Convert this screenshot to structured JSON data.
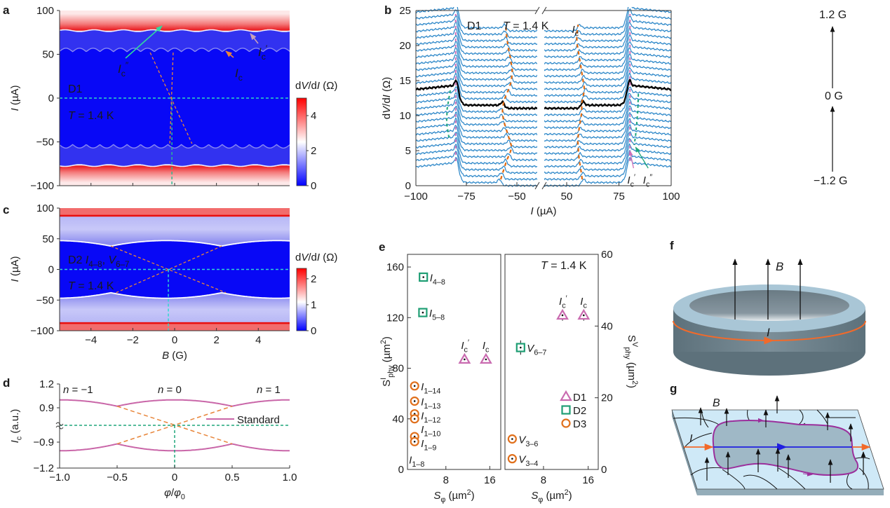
{
  "panel_letters": {
    "a": "a",
    "b": "b",
    "c": "c",
    "d": "d",
    "e": "e",
    "f": "f",
    "g": "g"
  },
  "chart_data": [
    {
      "type": "heatmap",
      "letter": "a",
      "ylabel": [
        [
          "I",
          "i"
        ],
        [
          " (µA)",
          ""
        ]
      ],
      "xlim": [
        -5.5,
        5.5
      ],
      "ylim": [
        -100,
        100
      ],
      "xticks": [
        -4,
        -2,
        0,
        2,
        4
      ],
      "yticks": [
        100,
        50,
        0,
        -50,
        -100
      ],
      "ytick_labels": [
        "100",
        "50",
        "0",
        "−50",
        "−100"
      ],
      "colorbar": {
        "label": [
          [
            "d",
            ""
          ],
          [
            "V",
            "i"
          ],
          [
            "/d",
            ""
          ],
          [
            "I",
            "i"
          ],
          [
            " (Ω)",
            ""
          ]
        ],
        "range": [
          0,
          5
        ],
        "ticks": [
          0,
          2,
          4
        ],
        "tick_labels": [
          "0",
          "2",
          "4"
        ]
      },
      "device": "D1",
      "temperature": [
        [
          "T",
          "i"
        ],
        [
          " = 1.4 K",
          ""
        ]
      ],
      "annotations": {
        "ic": [
          [
            "I",
            "i"
          ],
          [
            "c",
            "sub"
          ]
        ],
        "ic_prime": [
          [
            "I",
            "i"
          ],
          [
            "c",
            "sub"
          ],
          [
            "′",
            "sup"
          ]
        ],
        "ic_dprime": [
          [
            "I",
            "i"
          ],
          [
            "c",
            "sub"
          ],
          [
            "″",
            "sup"
          ]
        ]
      },
      "values": {
        "ic_uA": 53,
        "ic_oscillation_uA": 4,
        "ic_period_G": 0.65,
        "ic_prime_uA": 77,
        "ic_dprime_uA": 80
      },
      "colors": {
        "low": "#0000ff",
        "mid": "#ffffff",
        "high": "#ff0000",
        "ic_arrow": "#e8853a",
        "ic_prime_arrow": "#c9a0b8",
        "ic_dprime_arrow": "#2fd8a0"
      }
    },
    {
      "type": "line",
      "letter": "b",
      "xlabel": [
        [
          "I",
          "i"
        ],
        [
          " (µA)",
          ""
        ]
      ],
      "ylabel": [
        [
          "d",
          ""
        ],
        [
          "V",
          "i"
        ],
        [
          "/d",
          ""
        ],
        [
          "I",
          "i"
        ],
        [
          " (Ω)",
          ""
        ]
      ],
      "ylim": [
        0,
        25
      ],
      "yticks": [
        0,
        5,
        10,
        15,
        20,
        25
      ],
      "ytick_labels": [
        "0",
        "5",
        "10",
        "15",
        "20",
        "25"
      ],
      "xticks_left": [
        -100,
        -75,
        -50
      ],
      "xtick_labels_left": [
        "−100",
        "−75",
        "−50"
      ],
      "xticks_right": [
        50,
        75,
        100
      ],
      "xtick_labels_right": [
        "50",
        "75",
        "100"
      ],
      "device": "D1",
      "temperature": [
        [
          "T",
          "i"
        ],
        [
          " = 1.4 K",
          ""
        ]
      ],
      "field_labels": {
        "top": "1.2 G",
        "middle": "0 G",
        "bottom": "−1.2 G"
      },
      "field_range_G": [
        -1.2,
        1.2
      ],
      "trace_offset_ohm": 0.92,
      "ic_prime_uA": 80,
      "ic_neg_uA": [
        58,
        57,
        56,
        55,
        53.5,
        52.5,
        53.5,
        54.5,
        55.5,
        56.5,
        57,
        57.2,
        56.5,
        55.5,
        54,
        53,
        52.5,
        52.3,
        52.8,
        53.3,
        54,
        54.5,
        55,
        55.3,
        55.5
      ],
      "ic_pos_uA": [
        57.4,
        57,
        56.5,
        56,
        55.7,
        55.5,
        55.3,
        55.6,
        56,
        56.5,
        57,
        57.2,
        57.2,
        58,
        58.5,
        58,
        57.5,
        57,
        56.5,
        56,
        55.5,
        55,
        54.8,
        55,
        55.5
      ],
      "annotations": {
        "ic": [
          [
            "I",
            "i"
          ],
          [
            "c",
            "sub"
          ]
        ],
        "ic_prime": [
          [
            "I",
            "i"
          ],
          [
            "c",
            "sub"
          ],
          [
            "′",
            "sup"
          ]
        ],
        "ic_dprime": [
          [
            "I",
            "i"
          ],
          [
            "c",
            "sub"
          ],
          [
            "″",
            "sup"
          ]
        ]
      },
      "colors": {
        "trace": "#2a86c8",
        "zero_field_trace": "#000000",
        "ic": "#e06a10",
        "ic_prime": "#d070b8",
        "ic_dprime": "#1ea57a"
      }
    },
    {
      "type": "heatmap",
      "letter": "c",
      "xlabel": [
        [
          "B",
          "i"
        ],
        [
          " (G)",
          ""
        ]
      ],
      "ylabel": [
        [
          "I",
          "i"
        ],
        [
          " (µA)",
          ""
        ]
      ],
      "xlim": [
        -5.5,
        5.5
      ],
      "ylim": [
        -100,
        100
      ],
      "xticks": [
        -4,
        -2,
        0,
        2,
        4
      ],
      "xtick_labels": [
        "−4",
        "−2",
        "0",
        "2",
        "4"
      ],
      "yticks": [
        100,
        50,
        0,
        -50,
        -100
      ],
      "ytick_labels": [
        "100",
        "50",
        "0",
        "−50",
        "−100"
      ],
      "colorbar": {
        "label": [
          [
            "d",
            ""
          ],
          [
            "V",
            "i"
          ],
          [
            "/d",
            ""
          ],
          [
            "I",
            "i"
          ],
          [
            " (Ω)",
            ""
          ]
        ],
        "range": [
          0,
          2.4
        ],
        "ticks": [
          0,
          1,
          2
        ],
        "tick_labels": [
          "0",
          "1",
          "2"
        ]
      },
      "device": [
        [
          "D2 ",
          ""
        ],
        [
          "I",
          "i"
        ],
        [
          "4–8",
          "sub"
        ],
        [
          ", ",
          ""
        ],
        [
          "V",
          "i"
        ],
        [
          "6–7",
          "sub"
        ]
      ],
      "temperature": [
        [
          "T",
          "i"
        ],
        [
          " = 1.4 K",
          ""
        ]
      ],
      "values": {
        "ic_max_uA": 47,
        "ic_cusp_uA": 38,
        "period_G": 5.3,
        "center_G": -0.4,
        "normal_state_edge_uA": 86
      },
      "colors": {
        "low": "#0000ff",
        "mid": "#ffffff",
        "high": "#ff0000"
      }
    },
    {
      "type": "line",
      "letter": "d",
      "xlabel": [
        [
          "φ",
          "i"
        ],
        [
          "/",
          ""
        ],
        [
          "φ",
          "i"
        ],
        [
          "0",
          "sub"
        ]
      ],
      "ylabel": [
        [
          "I",
          "i"
        ],
        [
          "c",
          "sub"
        ],
        [
          " (a.u.)",
          ""
        ]
      ],
      "xlim": [
        -1.0,
        1.0
      ],
      "xticks": [
        -1.0,
        -0.5,
        0,
        0.5,
        1.0
      ],
      "xtick_labels": [
        "−1.0",
        "−0.5",
        "0",
        "0.5",
        "1.0"
      ],
      "yticks": [
        1.2,
        0.9,
        -0.9,
        -1.2
      ],
      "ytick_labels": [
        "1.2",
        "0.9",
        "−0.9",
        "−1.2"
      ],
      "y_axis_break": true,
      "legend": {
        "label": "Standard",
        "position": "right"
      },
      "n_labels": [
        [
          [
            "n",
            "i"
          ],
          [
            " = −1",
            ""
          ]
        ],
        [
          [
            "n",
            "i"
          ],
          [
            " = 0",
            ""
          ]
        ],
        [
          [
            "n",
            "i"
          ],
          [
            " = 1",
            ""
          ]
        ]
      ],
      "n_values": [
        -1,
        0,
        1
      ],
      "ic_max": 1.0,
      "ic_at_half_flux": 0.92,
      "colors": {
        "standard": "#c966a8",
        "extension": "#e8853a",
        "guide": "#1ea57a"
      }
    },
    {
      "type": "scatter",
      "letter": "e",
      "temperature": [
        [
          "T",
          "i"
        ],
        [
          " = 1.4 K",
          ""
        ]
      ],
      "left": {
        "xlabel": [
          [
            "S",
            "i"
          ],
          [
            "φ",
            "sub"
          ],
          [
            " (µm",
            ""
          ],
          [
            "2",
            "sup"
          ],
          [
            ")",
            ""
          ]
        ],
        "ylabel": [
          [
            "S",
            ""
          ],
          [
            "I",
            "sup"
          ],
          [
            "phy",
            "sub"
          ],
          [
            " (µm",
            ""
          ],
          [
            "2",
            "sup"
          ],
          [
            ")",
            ""
          ]
        ],
        "xlim": [
          1,
          18
        ],
        "ylim": [
          0,
          170
        ],
        "xticks": [
          8,
          16
        ],
        "xtick_labels": [
          "8",
          "16"
        ],
        "yticks": [
          0,
          40,
          80,
          120,
          160
        ],
        "ytick_labels": [
          "0",
          "40",
          "80",
          "120",
          "160"
        ],
        "points": [
          {
            "series": "D2",
            "x": 3.9,
            "y": 152,
            "err": 2,
            "label": [
              [
                "I",
                "i"
              ],
              [
                "4–8",
                "sub"
              ]
            ]
          },
          {
            "series": "D2",
            "x": 3.8,
            "y": 124,
            "err": 2,
            "label": [
              [
                "I",
                "i"
              ],
              [
                "5–8",
                "sub"
              ]
            ]
          },
          {
            "series": "D1",
            "x": 11.4,
            "y": 87,
            "err": 1.5,
            "label": [
              [
                "I",
                "i"
              ],
              [
                "c",
                "sub"
              ],
              [
                "′",
                "sup"
              ]
            ]
          },
          {
            "series": "D1",
            "x": 15.3,
            "y": 87,
            "err": 1.5,
            "label": [
              [
                "I",
                "i"
              ],
              [
                "c",
                "sub"
              ]
            ]
          },
          {
            "series": "D3",
            "x": 2.3,
            "y": 66,
            "err": 2,
            "label": [
              [
                "I",
                "i"
              ],
              [
                "1–14",
                "sub"
              ]
            ]
          },
          {
            "series": "D3",
            "x": 2.3,
            "y": 54,
            "err": 2,
            "label": [
              [
                "I",
                "i"
              ],
              [
                "1–13",
                "sub"
              ]
            ]
          },
          {
            "series": "D3",
            "x": 2.3,
            "y": 44,
            "err": 2,
            "label": [
              [
                "I",
                "i"
              ],
              [
                "1–12",
                "sub"
              ]
            ]
          },
          {
            "series": "D3",
            "x": 2.3,
            "y": 40,
            "err": 2,
            "label": [
              [
                "I",
                "i"
              ],
              [
                "1–10",
                "sub"
              ]
            ]
          },
          {
            "series": "D3",
            "x": 2.3,
            "y": 26,
            "err": 2,
            "label": [
              [
                "I",
                "i"
              ],
              [
                "1–9",
                "sub"
              ]
            ]
          },
          {
            "series": "D3",
            "x": 2.3,
            "y": 22,
            "err": 2,
            "label": [
              [
                "I",
                "i"
              ],
              [
                "1–8",
                "sub"
              ]
            ]
          }
        ]
      },
      "right": {
        "xlabel": [
          [
            "S",
            "i"
          ],
          [
            "φ",
            "sub"
          ],
          [
            " (µm",
            ""
          ],
          [
            "2",
            "sup"
          ],
          [
            ")",
            ""
          ]
        ],
        "ylabel": [
          [
            "S",
            ""
          ],
          [
            "V",
            "sup"
          ],
          [
            "phy",
            "sub"
          ],
          [
            " (µm",
            ""
          ],
          [
            "2",
            "sup"
          ],
          [
            ")",
            ""
          ]
        ],
        "xlim": [
          1.1,
          17.8
        ],
        "ylim": [
          0,
          60
        ],
        "xticks": [
          8,
          16
        ],
        "xtick_labels": [
          "8",
          "16"
        ],
        "yticks": [
          0,
          20,
          40,
          60
        ],
        "ytick_labels": [
          "0",
          "20",
          "40",
          "60"
        ],
        "points": [
          {
            "series": "D1",
            "x": 11.4,
            "y": 43,
            "err": 1.5,
            "label": [
              [
                "I",
                "i"
              ],
              [
                "c",
                "sub"
              ],
              [
                "′",
                "sup"
              ]
            ]
          },
          {
            "series": "D1",
            "x": 15.2,
            "y": 43,
            "err": 1.5,
            "label": [
              [
                "I",
                "i"
              ],
              [
                "c",
                "sub"
              ]
            ]
          },
          {
            "series": "D2",
            "x": 3.9,
            "y": 34,
            "err": 2,
            "label": [
              [
                "V",
                "i"
              ],
              [
                "6–7",
                "sub"
              ]
            ]
          },
          {
            "series": "D3",
            "x": 2.4,
            "y": 8.5,
            "err": 0.5,
            "label": [
              [
                "V",
                "i"
              ],
              [
                "3–6",
                "sub"
              ]
            ]
          },
          {
            "series": "D3",
            "x": 2.4,
            "y": 3,
            "err": 0.5,
            "label": [
              [
                "V",
                "i"
              ],
              [
                "3–4",
                "sub"
              ]
            ]
          }
        ]
      },
      "legend": [
        {
          "name": "D1",
          "marker": "triangle",
          "color": "#c96bb0"
        },
        {
          "name": "D2",
          "marker": "square",
          "color": "#1f9e74"
        },
        {
          "name": "D3",
          "marker": "circle",
          "color": "#e0701c"
        }
      ],
      "legend_position": "bottom-right"
    }
  ],
  "diagrams": {
    "f": {
      "field_label": "B",
      "current_label": "I",
      "ring_color": "#a9c6d6",
      "current_color": "#f26a2a"
    },
    "g": {
      "field_label": "B",
      "current_label": "I",
      "film_color": "#cfe9f7",
      "loop_color": "#9b2f9c",
      "inner_current_color": "#2020e0"
    }
  }
}
